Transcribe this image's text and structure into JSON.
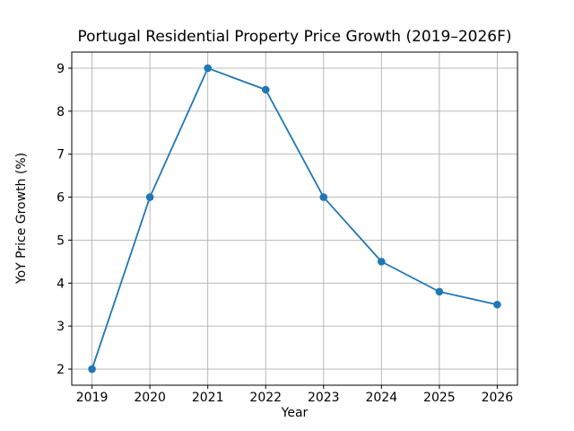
{
  "chart_data": {
    "type": "line",
    "title": "Portugal Residential Property Price Growth (2019–2026F)",
    "xlabel": "Year",
    "ylabel": "YoY Price Growth (%)",
    "x": [
      2019,
      2020,
      2021,
      2022,
      2023,
      2024,
      2025,
      2026
    ],
    "series": [
      {
        "name": "YoY Price Growth (%)",
        "values": [
          2.0,
          6.0,
          9.0,
          8.5,
          6.0,
          4.5,
          3.8,
          3.5
        ]
      }
    ],
    "xticks": [
      2019,
      2020,
      2021,
      2022,
      2023,
      2024,
      2025,
      2026
    ],
    "yticks": [
      2,
      3,
      4,
      5,
      6,
      7,
      8,
      9
    ],
    "xlim": [
      2018.65,
      2026.35
    ],
    "ylim": [
      1.625,
      9.375
    ],
    "grid": true,
    "legend": false,
    "line_color": "#1f77b4",
    "marker_color": "#1f77b4",
    "grid_color": "#b0b0b0",
    "spine_color": "#000000"
  }
}
